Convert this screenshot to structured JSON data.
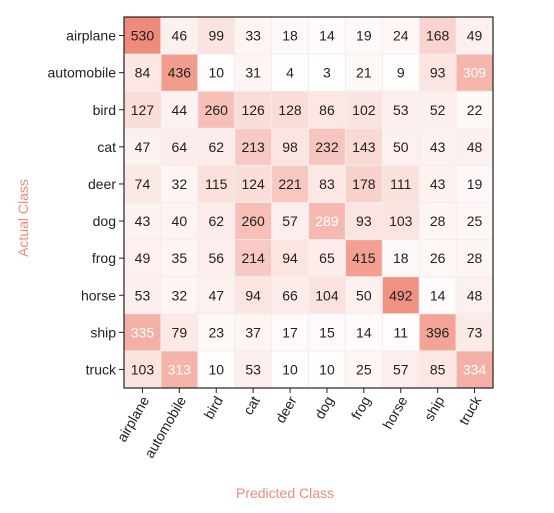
{
  "chart_data": {
    "type": "heatmap",
    "title": "",
    "xlabel": "Predicted Class",
    "ylabel": "Actual Class",
    "x_categories": [
      "airplane",
      "automobile",
      "bird",
      "cat",
      "deer",
      "dog",
      "frog",
      "horse",
      "ship",
      "truck"
    ],
    "y_categories": [
      "airplane",
      "automobile",
      "bird",
      "cat",
      "deer",
      "dog",
      "frog",
      "horse",
      "ship",
      "truck"
    ],
    "values": [
      [
        530,
        46,
        99,
        33,
        18,
        14,
        19,
        24,
        168,
        49
      ],
      [
        84,
        436,
        10,
        31,
        4,
        3,
        21,
        9,
        93,
        309
      ],
      [
        127,
        44,
        260,
        126,
        128,
        86,
        102,
        53,
        52,
        22
      ],
      [
        47,
        64,
        62,
        213,
        98,
        232,
        143,
        50,
        43,
        48
      ],
      [
        74,
        32,
        115,
        124,
        221,
        83,
        178,
        111,
        43,
        19
      ],
      [
        43,
        40,
        62,
        260,
        57,
        289,
        93,
        103,
        28,
        25
      ],
      [
        49,
        35,
        56,
        214,
        94,
        65,
        415,
        18,
        26,
        28
      ],
      [
        53,
        32,
        47,
        94,
        66,
        104,
        50,
        492,
        14,
        48
      ],
      [
        335,
        79,
        23,
        37,
        17,
        15,
        14,
        11,
        396,
        73
      ],
      [
        103,
        313,
        10,
        53,
        10,
        10,
        25,
        57,
        85,
        334
      ]
    ],
    "colors": {
      "low": "#ffffff",
      "high": "#f08a7a",
      "text": "#222222",
      "axis_title": "#f08a7a"
    }
  }
}
